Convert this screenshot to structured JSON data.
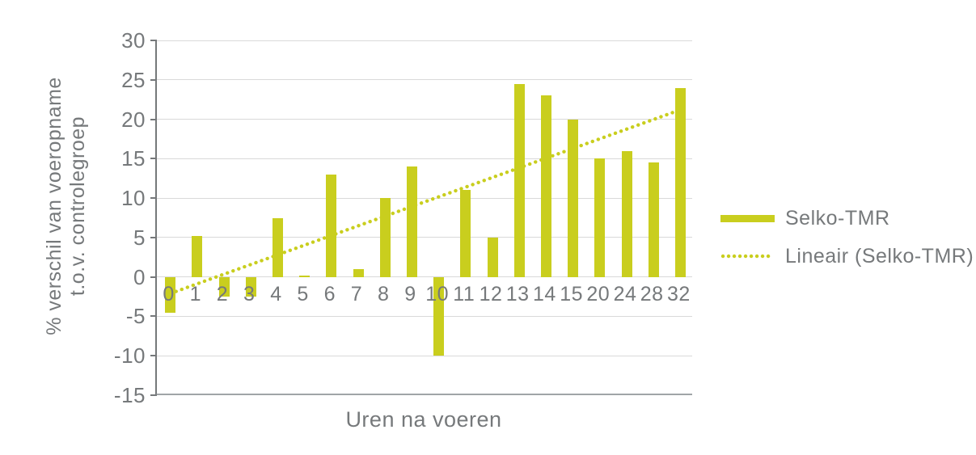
{
  "chart_data": {
    "type": "bar",
    "title": "",
    "categories": [
      "0",
      "1",
      "2",
      "3",
      "4",
      "5",
      "6",
      "7",
      "8",
      "9",
      "10",
      "11",
      "12",
      "13",
      "14",
      "15",
      "20",
      "24",
      "28",
      "32"
    ],
    "series": [
      {
        "name": "Selko-TMR",
        "values": [
          -4.5,
          5.2,
          -2.5,
          -2.5,
          7.5,
          0.2,
          13,
          1,
          10,
          14,
          -10,
          11,
          5,
          24.5,
          23,
          20,
          15,
          16,
          14.5,
          24
        ]
      }
    ],
    "trendline": {
      "name": "Lineair (Selko-TMR)",
      "kind": "linear",
      "start_value": -2.1,
      "end_value": 21.2,
      "style": "dotted"
    },
    "xlabel": "Uren na voeren",
    "ylabel": "% verschil van voeropname t.o.v. controlegroep",
    "ylabel_lines": [
      "% verschil van voeropname",
      "t.o.v. controlegroep"
    ],
    "y_ticks": [
      30,
      25,
      20,
      15,
      10,
      5,
      0,
      -5,
      -10,
      -15
    ],
    "ylim": [
      -15,
      30
    ],
    "grid": true,
    "legend_position": "right-middle",
    "colors": {
      "series": "#c9ce1e",
      "gridline": "#d9d9d9",
      "axis_line": "#75787a",
      "bottom_line": "#a0a5a7",
      "text": "#76797b"
    }
  },
  "legend": {
    "items": [
      {
        "label": "Selko-TMR",
        "swatch": "bar"
      },
      {
        "label": "Lineair (Selko-TMR)",
        "swatch": "dotted-line"
      }
    ]
  }
}
